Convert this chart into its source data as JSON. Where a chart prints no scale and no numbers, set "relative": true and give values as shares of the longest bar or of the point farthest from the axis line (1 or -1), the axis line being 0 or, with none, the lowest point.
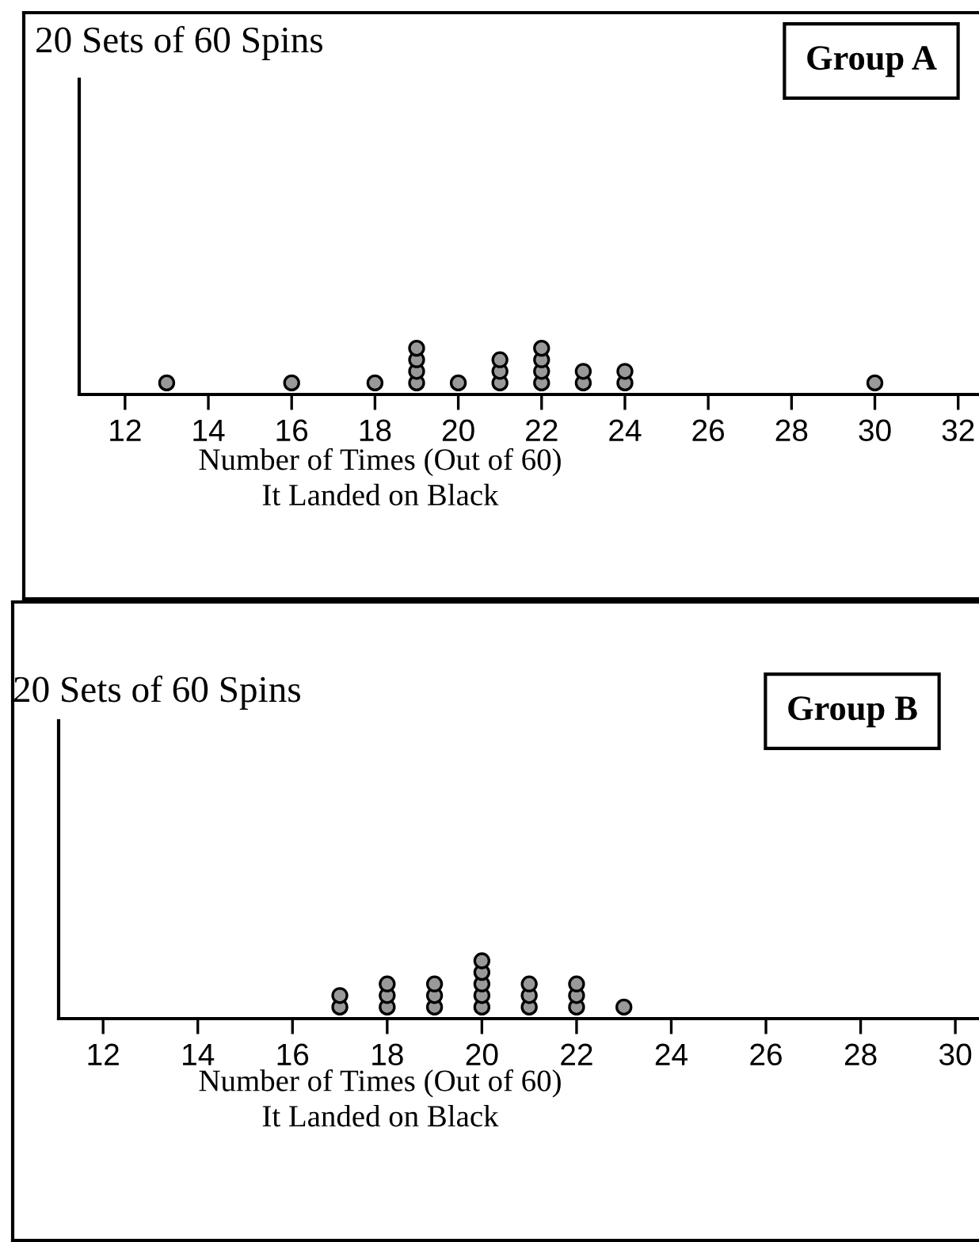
{
  "chart_data": [
    {
      "type": "scatter",
      "title": "20 Sets of 60 Spins",
      "xlabel": "Number of Times (Out of 60)\nIt Landed on Black",
      "annotations": [
        "Group A"
      ],
      "relative": true,
      "marker": "circle",
      "tick_labels": "x",
      "color": "#999999",
      "x": [
        13,
        16,
        18,
        19,
        19,
        19,
        19,
        20,
        21,
        21,
        21,
        22,
        22,
        22,
        22,
        23,
        23,
        24,
        24,
        30
      ],
      "values": [
        0.25,
        0.25,
        0.25,
        0.25,
        0.5,
        0.75,
        1,
        0.25,
        0.25,
        0.5,
        0.75,
        0.25,
        0.5,
        0.75,
        1,
        0.25,
        0.5,
        0.25,
        0.5,
        0.25
      ],
      "xlim": [
        10.9,
        32.5
      ],
      "xticks": [
        12,
        14,
        16,
        18,
        20,
        22,
        24,
        26,
        28,
        30,
        32
      ]
    },
    {
      "type": "scatter",
      "title": "20 Sets of 60 Spins",
      "xlabel": "Number of Times (Out of 60)\nIt Landed on Black",
      "annotations": [
        "Group B"
      ],
      "relative": true,
      "marker": "circle",
      "tick_labels": "x",
      "color": "#999999",
      "x": [
        17,
        17,
        18,
        18,
        18,
        19,
        19,
        19,
        20,
        20,
        20,
        20,
        20,
        21,
        21,
        21,
        22,
        22,
        22,
        23
      ],
      "values": [
        0.2,
        0.4,
        0.2,
        0.4,
        0.6,
        0.2,
        0.4,
        0.6,
        0.2,
        0.4,
        0.6,
        0.8,
        1,
        0.2,
        0.4,
        0.6,
        0.2,
        0.4,
        0.6,
        0.2
      ],
      "xlim": [
        11.06,
        30.5
      ],
      "xticks": [
        12,
        14,
        16,
        18,
        20,
        22,
        24,
        26,
        28,
        30
      ]
    }
  ]
}
